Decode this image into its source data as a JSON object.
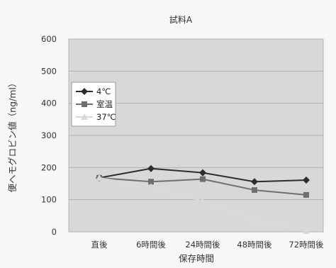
{
  "chart_data": {
    "type": "line",
    "title": "試料A",
    "xlabel": "保存時間",
    "ylabel": "便ヘモグロビン値（ng/ml）",
    "categories": [
      "直後",
      "6時間後",
      "24時間後",
      "48時間後",
      "72時間後"
    ],
    "ylim": [
      0,
      600
    ],
    "yticks": [
      0,
      100,
      200,
      300,
      400,
      500,
      600
    ],
    "grid": true,
    "legend_position": "top-left",
    "series": [
      {
        "name": "4℃",
        "values": [
          168,
          197,
          184,
          156,
          161
        ],
        "color": "#2d2d2d",
        "marker": "diamond"
      },
      {
        "name": "室温",
        "values": [
          168,
          156,
          164,
          130,
          115
        ],
        "color": "#6f6f6f",
        "marker": "square"
      },
      {
        "name": "37℃",
        "values": [
          168,
          140,
          95,
          38,
          2
        ],
        "color": "#d9d9d9",
        "marker": "triangle"
      }
    ]
  }
}
